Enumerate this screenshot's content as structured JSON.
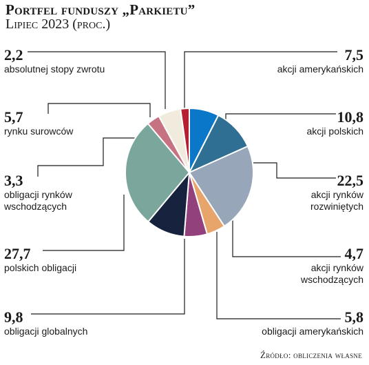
{
  "header": {
    "title": "Portfel funduszy „Parkietu”",
    "subtitle": "Lipiec 2023 (proc.)"
  },
  "source": "Źródło: obliczenia własne",
  "colors": {
    "akcji_amerykanskich": "#0b77c9",
    "akcji_polskich": "#2f6f93",
    "akcji_rynkow_rozwinietych": "#97a6b9",
    "akcji_rynkow_wschodzacych": "#e7a46b",
    "obligacji_amerykanskich": "#93417c",
    "obligacji_globalnych": "#17223f",
    "polskich_obligacji": "#7aa69b",
    "obligacji_rynkow_wschodzacych": "#c77282",
    "rynku_surowcow": "#f0ebdc",
    "absolutnej_stopy_zwrotu": "#b61f31"
  },
  "chart_data": {
    "type": "pie",
    "title": "Portfel funduszy „Parkietu”",
    "subtitle": "Lipiec 2023 (proc.)",
    "unit": "proc.",
    "slices": [
      {
        "label": "akcji amerykańskich",
        "value": 7.5,
        "value_text": "7,5",
        "color": "#0b77c9"
      },
      {
        "label": "akcji polskich",
        "value": 10.8,
        "value_text": "10,8",
        "color": "#2f6f93"
      },
      {
        "label": "akcji rynków rozwiniętych",
        "value": 22.5,
        "value_text": "22,5",
        "color": "#97a6b9"
      },
      {
        "label": "akcji rynków wschodzących",
        "value": 4.7,
        "value_text": "4,7",
        "color": "#e7a46b"
      },
      {
        "label": "obligacji amerykańskich",
        "value": 5.8,
        "value_text": "5,8",
        "color": "#93417c"
      },
      {
        "label": "obligacji globalnych",
        "value": 9.8,
        "value_text": "9,8",
        "color": "#17223f"
      },
      {
        "label": "polskich obligacji",
        "value": 27.7,
        "value_text": "27,7",
        "color": "#7aa69b"
      },
      {
        "label": "obligacji rynków wschodzących",
        "value": 3.3,
        "value_text": "3,3",
        "color": "#c77282"
      },
      {
        "label": "rynku surowców",
        "value": 5.7,
        "value_text": "5,7",
        "color": "#f0ebdc"
      },
      {
        "label": "absolutnej stopy zwrotu",
        "value": 2.2,
        "value_text": "2,2",
        "color": "#b61f31"
      }
    ],
    "labels": {
      "left": [
        {
          "value": "2,2",
          "lines": [
            "absolutnej stopy zwrotu"
          ]
        },
        {
          "value": "5,7",
          "lines": [
            "rynku surowców"
          ]
        },
        {
          "value": "3,3",
          "lines": [
            "obligacji rynków",
            "wschodzących"
          ]
        },
        {
          "value": "27,7",
          "lines": [
            "polskich obligacji"
          ]
        },
        {
          "value": "9,8",
          "lines": [
            "obligacji globalnych"
          ]
        }
      ],
      "right": [
        {
          "value": "7,5",
          "lines": [
            "akcji amerykańskich"
          ]
        },
        {
          "value": "10,8",
          "lines": [
            "akcji polskich"
          ]
        },
        {
          "value": "22,5",
          "lines": [
            "akcji rynków",
            "rozwiniętych"
          ]
        },
        {
          "value": "4,7",
          "lines": [
            "akcji rynków",
            "wschodzących"
          ]
        },
        {
          "value": "5,8",
          "lines": [
            "obligacji amerykańskich"
          ]
        }
      ]
    }
  }
}
